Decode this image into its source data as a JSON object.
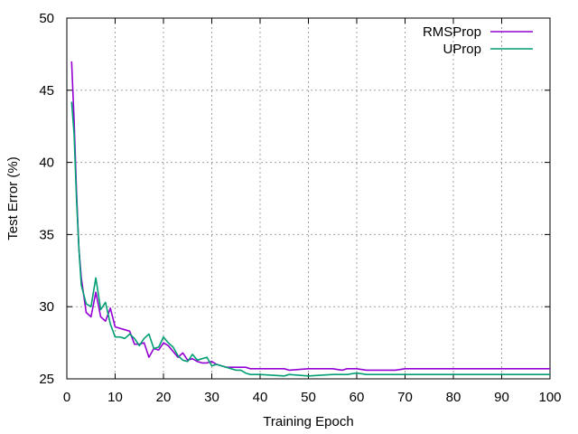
{
  "chart_data": {
    "type": "line",
    "title": "",
    "xlabel": "Training Epoch",
    "ylabel": "Test Error (%)",
    "xlim": [
      0,
      100
    ],
    "ylim": [
      25,
      50
    ],
    "xticks": [
      "0",
      "10",
      "20",
      "30",
      "40",
      "50",
      "60",
      "70",
      "80",
      "90",
      "100"
    ],
    "yticks": [
      "25",
      "30",
      "35",
      "40",
      "45",
      "50"
    ],
    "grid": true,
    "legend": "top-right",
    "series": [
      {
        "name": "RMSProp",
        "color": "#9400d3",
        "x": [
          1,
          1.5,
          2,
          2.5,
          3,
          4,
          5,
          6,
          7,
          8,
          9,
          10,
          11,
          12,
          13,
          14,
          15,
          16,
          17,
          18,
          19,
          20,
          21,
          22,
          23,
          24,
          25,
          26,
          27,
          28,
          29,
          30,
          31,
          32,
          33,
          34,
          35,
          36,
          37,
          38,
          39,
          40,
          45,
          46,
          50,
          55,
          57,
          58,
          60,
          62,
          65,
          68,
          70,
          80,
          90,
          100
        ],
        "values": [
          47,
          43,
          38,
          34,
          32,
          29.6,
          29.3,
          31,
          29.3,
          29,
          29.9,
          28.6,
          28.5,
          28.4,
          28.3,
          27.4,
          27.4,
          27.5,
          26.5,
          27.1,
          27,
          27.5,
          27.3,
          26.9,
          26.5,
          26.8,
          26.3,
          26.4,
          26.2,
          26.1,
          26.1,
          26.2,
          26.0,
          25.9,
          25.8,
          25.8,
          25.8,
          25.8,
          25.8,
          25.7,
          25.7,
          25.7,
          25.7,
          25.6,
          25.7,
          25.7,
          25.6,
          25.7,
          25.7,
          25.6,
          25.6,
          25.6,
          25.7,
          25.7,
          25.7,
          25.7
        ]
      },
      {
        "name": "UProp",
        "color": "#009e73",
        "x": [
          1,
          1.5,
          2,
          2.5,
          3,
          4,
          5,
          6,
          7,
          8,
          9,
          10,
          11,
          12,
          13,
          14,
          15,
          16,
          17,
          18,
          19,
          20,
          21,
          22,
          23,
          24,
          25,
          26,
          27,
          28,
          29,
          30,
          31,
          32,
          33,
          34,
          35,
          36,
          37,
          38,
          39,
          40,
          45,
          46,
          50,
          55,
          58,
          60,
          62,
          65,
          70,
          80,
          90,
          100
        ],
        "values": [
          44.2,
          42,
          37.5,
          34,
          31.5,
          30.2,
          30,
          32,
          29.8,
          30.3,
          28.8,
          27.9,
          27.9,
          27.8,
          28.1,
          27.8,
          27.3,
          27.8,
          28.1,
          27.1,
          27.2,
          27.9,
          27.5,
          27.2,
          26.6,
          26.3,
          26.2,
          26.7,
          26.3,
          26.4,
          26.5,
          25.9,
          26.0,
          25.9,
          25.8,
          25.7,
          25.6,
          25.6,
          25.4,
          25.3,
          25.3,
          25.3,
          25.2,
          25.3,
          25.2,
          25.3,
          25.3,
          25.4,
          25.3,
          25.3,
          25.3,
          25.3,
          25.3,
          25.3
        ]
      }
    ]
  }
}
